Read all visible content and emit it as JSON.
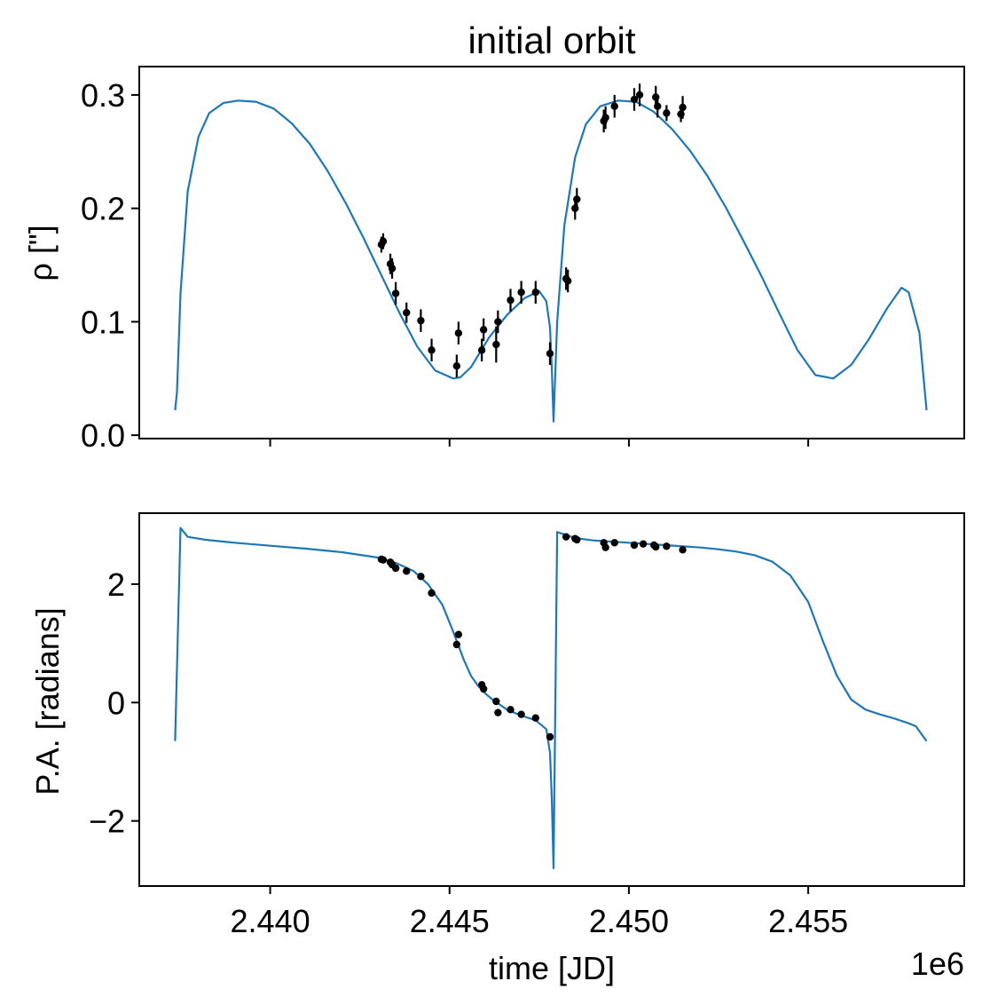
{
  "figure": {
    "title": "initial orbit",
    "xlabel": "time [JD]",
    "offset_text": "1e6"
  },
  "chart_data": [
    {
      "type": "line",
      "title": "initial orbit",
      "xlabel": "",
      "ylabel": "ρ [\"]",
      "xlim": [
        2.43635,
        2.45935
      ],
      "ylim": [
        -0.003,
        0.325
      ],
      "xticks": [
        {
          "value": 2.44,
          "label": ""
        },
        {
          "value": 2.445,
          "label": ""
        },
        {
          "value": 2.45,
          "label": ""
        },
        {
          "value": 2.455,
          "label": ""
        }
      ],
      "yticks": [
        {
          "value": 0.0,
          "label": "0.0"
        },
        {
          "value": 0.1,
          "label": "0.1"
        },
        {
          "value": 0.2,
          "label": "0.2"
        },
        {
          "value": 0.3,
          "label": "0.3"
        }
      ],
      "series": [
        {
          "kind": "line",
          "color": "#1f77b4",
          "x": [
            2.43735,
            2.4374,
            2.4375,
            2.4377,
            2.438,
            2.4383,
            2.4387,
            2.4391,
            2.4396,
            2.4401,
            2.4406,
            2.4411,
            2.4416,
            2.4421,
            2.4426,
            2.4431,
            2.4436,
            2.4441,
            2.4446,
            2.4451,
            2.4453,
            2.4456,
            2.4461,
            2.4466,
            2.4471,
            2.4475,
            2.4477,
            2.4478,
            2.44785,
            2.4479,
            2.448,
            2.4482,
            2.4485,
            2.4488,
            2.4492,
            2.4497,
            2.4502,
            2.4507,
            2.4512,
            2.4517,
            2.4522,
            2.4527,
            2.4532,
            2.4537,
            2.4542,
            2.4547,
            2.4552,
            2.4557,
            2.4562,
            2.4567,
            2.4572,
            2.4576,
            2.4578,
            2.4581,
            2.4583
          ],
          "y": [
            0.022,
            0.038,
            0.125,
            0.215,
            0.263,
            0.284,
            0.293,
            0.295,
            0.294,
            0.288,
            0.275,
            0.257,
            0.233,
            0.205,
            0.174,
            0.141,
            0.108,
            0.078,
            0.057,
            0.05,
            0.051,
            0.06,
            0.086,
            0.106,
            0.121,
            0.127,
            0.118,
            0.095,
            0.06,
            0.012,
            0.1,
            0.185,
            0.245,
            0.274,
            0.29,
            0.295,
            0.294,
            0.285,
            0.27,
            0.251,
            0.228,
            0.201,
            0.171,
            0.14,
            0.107,
            0.075,
            0.053,
            0.05,
            0.062,
            0.085,
            0.112,
            0.13,
            0.126,
            0.09,
            0.022
          ]
        },
        {
          "kind": "errorbar",
          "color": "#000000",
          "x": [
            2.4431,
            2.44315,
            2.44335,
            2.4434,
            2.4435,
            2.4438,
            2.4442,
            2.4445,
            2.4452,
            2.44525,
            2.4459,
            2.44595,
            2.4463,
            2.44635,
            2.4467,
            2.447,
            2.4474,
            2.4478,
            2.44825,
            2.4483,
            2.4485,
            2.44855,
            2.4493,
            2.44935,
            2.4496,
            2.45015,
            2.4503,
            2.45075,
            2.4508,
            2.45105,
            2.45145,
            2.4515
          ],
          "y": [
            0.168,
            0.171,
            0.151,
            0.147,
            0.125,
            0.108,
            0.101,
            0.075,
            0.061,
            0.09,
            0.075,
            0.093,
            0.08,
            0.1,
            0.119,
            0.126,
            0.126,
            0.072,
            0.138,
            0.136,
            0.2,
            0.208,
            0.277,
            0.28,
            0.29,
            0.296,
            0.3,
            0.298,
            0.29,
            0.284,
            0.283,
            0.289
          ],
          "yerr": [
            0.007,
            0.007,
            0.009,
            0.009,
            0.01,
            0.009,
            0.01,
            0.01,
            0.01,
            0.01,
            0.01,
            0.01,
            0.016,
            0.01,
            0.01,
            0.01,
            0.01,
            0.01,
            0.01,
            0.01,
            0.01,
            0.01,
            0.01,
            0.01,
            0.01,
            0.01,
            0.01,
            0.01,
            0.01,
            0.007,
            0.007,
            0.01
          ]
        }
      ]
    },
    {
      "type": "line",
      "title": "",
      "xlabel": "time [JD]",
      "ylabel": "P.A. [radians]",
      "xlim": [
        2.43635,
        2.45935
      ],
      "ylim": [
        -3.1,
        3.2
      ],
      "xticks": [
        {
          "value": 2.44,
          "label": "2.440"
        },
        {
          "value": 2.445,
          "label": "2.445"
        },
        {
          "value": 2.45,
          "label": "2.450"
        },
        {
          "value": 2.455,
          "label": "2.455"
        }
      ],
      "yticks": [
        {
          "value": -2,
          "label": "−2"
        },
        {
          "value": 0,
          "label": "0"
        },
        {
          "value": 2,
          "label": "2"
        }
      ],
      "series": [
        {
          "kind": "line",
          "color": "#1f77b4",
          "x": [
            2.43735,
            2.4375,
            2.4377,
            2.4382,
            2.439,
            2.44,
            2.441,
            2.442,
            2.443,
            2.4435,
            2.444,
            2.4444,
            2.4448,
            2.4451,
            2.4454,
            2.4456,
            2.4458,
            2.446,
            2.4462,
            2.4466,
            2.447,
            2.4474,
            2.4477,
            2.4478,
            2.44785,
            2.4479,
            2.448,
            2.4485,
            2.449,
            2.45,
            2.451,
            2.452,
            2.4525,
            2.453,
            2.4535,
            2.454,
            2.4545,
            2.455,
            2.4554,
            2.4558,
            2.4562,
            2.4566,
            2.457,
            2.4574,
            2.4578,
            2.458,
            2.4583
          ],
          "y": [
            -0.65,
            2.95,
            2.8,
            2.75,
            2.7,
            2.65,
            2.6,
            2.54,
            2.45,
            2.36,
            2.22,
            2.0,
            1.65,
            1.2,
            0.72,
            0.45,
            0.28,
            0.15,
            0.05,
            -0.12,
            -0.22,
            -0.3,
            -0.45,
            -0.85,
            -1.6,
            -2.8,
            2.88,
            2.78,
            2.74,
            2.7,
            2.66,
            2.62,
            2.59,
            2.55,
            2.49,
            2.38,
            2.15,
            1.7,
            1.05,
            0.45,
            0.05,
            -0.12,
            -0.2,
            -0.27,
            -0.35,
            -0.4,
            -0.65
          ]
        },
        {
          "kind": "scatter",
          "color": "#000000",
          "x": [
            2.4431,
            2.44315,
            2.44335,
            2.4434,
            2.4435,
            2.4438,
            2.4442,
            2.4445,
            2.4452,
            2.44525,
            2.4459,
            2.44595,
            2.4463,
            2.44635,
            2.4467,
            2.447,
            2.4474,
            2.4478,
            2.44825,
            2.4485,
            2.44855,
            2.4493,
            2.44935,
            2.4496,
            2.45015,
            2.4504,
            2.4507,
            2.45075,
            2.45105,
            2.4515
          ],
          "y": [
            2.42,
            2.41,
            2.37,
            2.33,
            2.27,
            2.22,
            2.13,
            1.85,
            0.98,
            1.15,
            0.3,
            0.23,
            0.02,
            -0.17,
            -0.12,
            -0.2,
            -0.26,
            -0.58,
            2.8,
            2.77,
            2.75,
            2.7,
            2.62,
            2.7,
            2.66,
            2.68,
            2.66,
            2.63,
            2.64,
            2.58
          ],
          "yerr": [
            0.02,
            0.02,
            0.02,
            0.02,
            0.02,
            0.02,
            0.02,
            0.02,
            0.03,
            0.06,
            0.02,
            0.02,
            0.02,
            0.02,
            0.02,
            0.02,
            0.02,
            0.02,
            0.02,
            0.02,
            0.02,
            0.02,
            0.02,
            0.02,
            0.02,
            0.02,
            0.02,
            0.02,
            0.02,
            0.02
          ]
        }
      ]
    }
  ]
}
